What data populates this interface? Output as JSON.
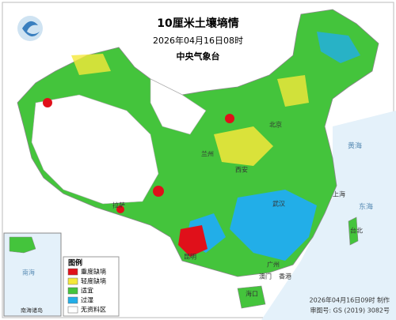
{
  "header": {
    "title": "10厘米土壤墒情",
    "time": "2026年04月16日08时",
    "issuer": "中央气象台"
  },
  "legend": {
    "title": "图例",
    "items": [
      {
        "label": "重度缺墒",
        "color": "#e0101a"
      },
      {
        "label": "轻度缺墒",
        "color": "#f5e83a"
      },
      {
        "label": "适宜",
        "color": "#44c43c"
      },
      {
        "label": "过湿",
        "color": "#22aee8"
      },
      {
        "label": "无资料区",
        "color": "#ffffff"
      }
    ]
  },
  "places": {
    "beijing": "北京",
    "shanghai": "上海",
    "guangzhou": "广州",
    "xianggang": "香港",
    "aomen": "澳门",
    "haikou": "海口",
    "taibei": "台北",
    "lasa": "拉萨",
    "kunming": "昆明",
    "wuhan": "武汉",
    "xian": "西安",
    "lanzhou": "兰州",
    "donghai": "东海",
    "huanghai": "黄海",
    "nanhai": "南海"
  },
  "inset": {
    "label": "南海诸岛"
  },
  "footer": {
    "made": "2026年04月16日09时 制作",
    "approval": "审图号: GS (2019) 3082号"
  }
}
